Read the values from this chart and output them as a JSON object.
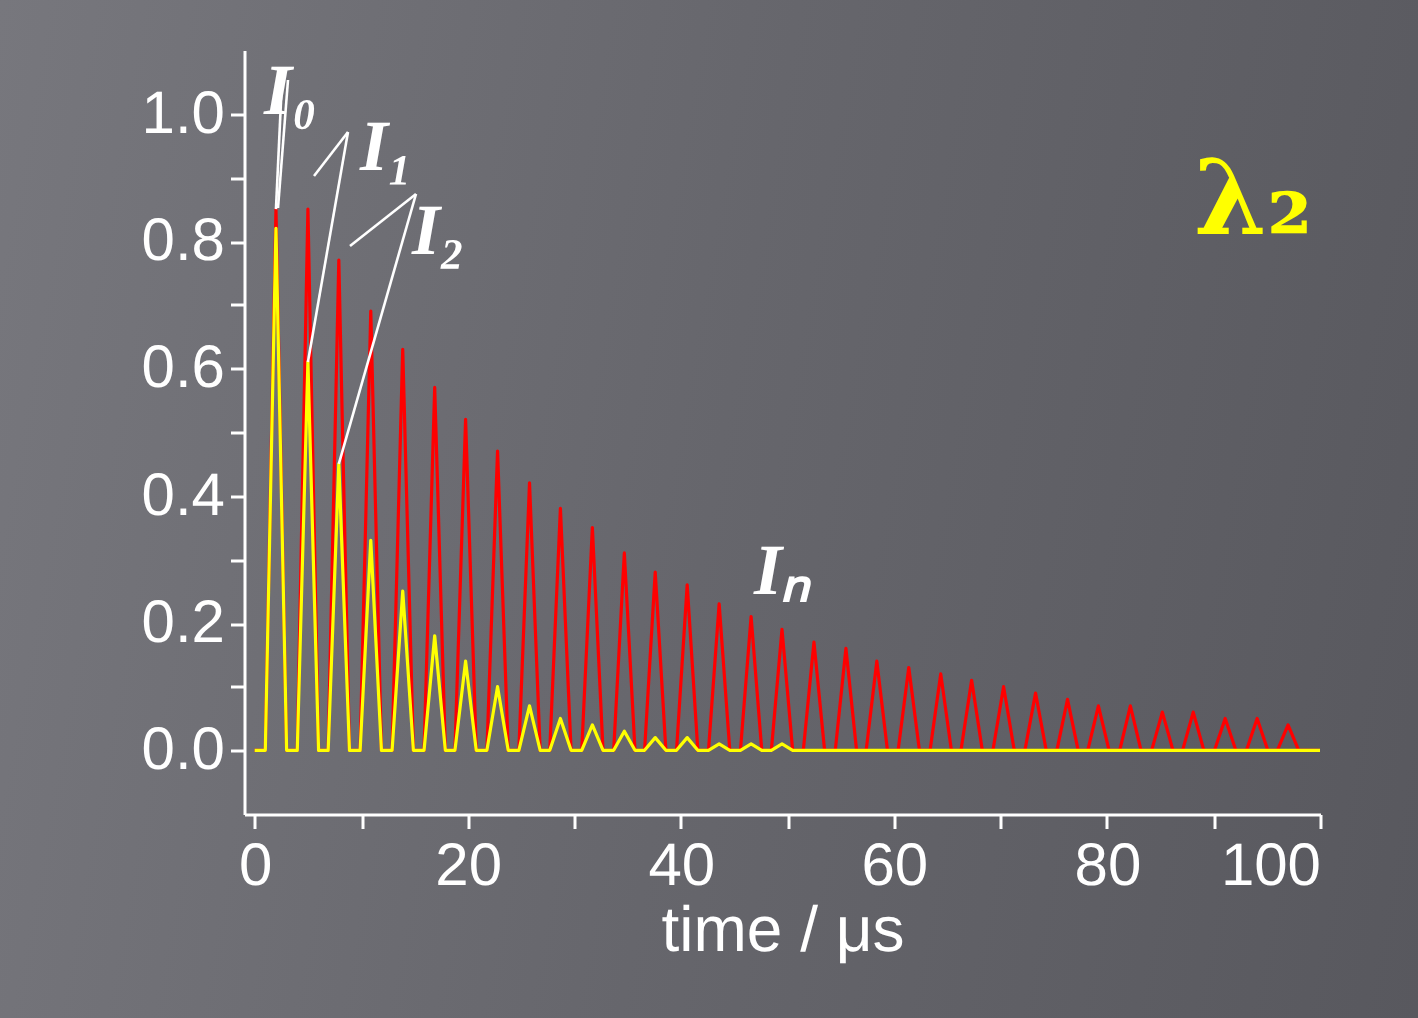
{
  "chart_data": {
    "type": "line",
    "xlabel": "time / μs",
    "x": [
      0,
      1,
      2,
      3,
      4,
      5,
      6,
      6.9,
      7.9,
      8.9,
      9.9,
      10.9,
      11.9,
      12.9,
      13.9,
      14.9,
      15.9,
      16.9,
      17.9,
      18.8,
      19.8,
      20.8,
      21.8,
      22.8,
      23.8,
      24.8,
      25.8,
      26.8,
      27.7,
      28.7,
      29.7,
      30.7,
      31.7,
      32.7,
      33.7,
      34.7,
      35.7,
      36.6,
      37.6,
      38.6,
      39.6,
      40.6,
      41.6,
      42.6,
      43.6,
      44.6,
      45.6,
      46.6,
      47.6,
      48.5,
      49.5,
      50.5,
      51.5,
      52.5,
      53.5,
      54.5,
      55.5,
      56.5,
      57.4,
      58.4,
      59.4,
      60.4,
      61.4,
      62.4,
      63.4,
      64.4,
      65.4,
      66.3,
      67.3,
      68.3,
      69.3,
      70.3,
      71.3,
      72.3,
      73.3,
      74.3,
      75.3,
      76.3,
      77.3,
      78.2,
      79.2,
      80.2,
      81.2,
      82.2,
      83.2,
      84.2,
      85.2,
      86.2,
      87.1,
      88.1,
      89.1,
      90.1,
      91.1,
      92.1,
      93.1,
      94.1,
      95.1,
      96,
      97,
      98,
      100
    ],
    "series": [
      {
        "color": "#ff0000",
        "values": [
          0,
          0,
          0.85,
          0,
          0,
          0.85,
          0,
          0,
          0.77,
          0,
          0,
          0.69,
          0,
          0,
          0.63,
          0,
          0,
          0.57,
          0,
          0,
          0.52,
          0,
          0,
          0.47,
          0,
          0,
          0.42,
          0,
          0,
          0.38,
          0,
          0,
          0.35,
          0,
          0,
          0.31,
          0,
          0,
          0.28,
          0,
          0,
          0.26,
          0,
          0,
          0.23,
          0,
          0,
          0.21,
          0,
          0,
          0.19,
          0,
          0,
          0.17,
          0,
          0,
          0.16,
          0,
          0,
          0.14,
          0,
          0,
          0.13,
          0,
          0,
          0.12,
          0,
          0,
          0.11,
          0,
          0,
          0.1,
          0,
          0,
          0.09,
          0,
          0,
          0.08,
          0,
          0,
          0.07,
          0,
          0,
          0.07,
          0,
          0,
          0.06,
          0,
          0,
          0.06,
          0,
          0,
          0.05,
          0,
          0,
          0.05,
          0,
          0,
          0.04,
          0,
          0
        ]
      },
      {
        "color": "#ffff00",
        "values": [
          0,
          0,
          0.82,
          0,
          0,
          0.61,
          0,
          0,
          0.45,
          0,
          0,
          0.33,
          0,
          0,
          0.25,
          0,
          0,
          0.18,
          0,
          0,
          0.14,
          0,
          0,
          0.1,
          0,
          0,
          0.07,
          0,
          0,
          0.05,
          0,
          0,
          0.04,
          0,
          0,
          0.03,
          0,
          0,
          0.02,
          0,
          0,
          0.02,
          0,
          0,
          0.01,
          0,
          0,
          0.01,
          0,
          0,
          0.01,
          0,
          0,
          0,
          0,
          0,
          0,
          0,
          0,
          0,
          0,
          0,
          0,
          0,
          0,
          0,
          0,
          0,
          0,
          0,
          0,
          0,
          0,
          0,
          0,
          0,
          0,
          0,
          0,
          0,
          0,
          0,
          0,
          0,
          0,
          0,
          0,
          0,
          0,
          0,
          0,
          0,
          0,
          0,
          0,
          0,
          0,
          0,
          0,
          0,
          0
        ]
      }
    ],
    "annotations": [
      {
        "text": "I₀",
        "x": 2,
        "y": 0.85
      },
      {
        "text": "I₁",
        "x": 5,
        "y": 0.61
      },
      {
        "text": "I₂",
        "x": 7.9,
        "y": 0.45
      },
      "Iₙ",
      "λ₂"
    ],
    "xlim": [
      -1,
      100
    ],
    "xticks": [
      0,
      {
        "value": 10,
        "label": null
      },
      20,
      {
        "value": 30,
        "label": null
      },
      40,
      {
        "value": 50,
        "label": null
      },
      60,
      {
        "value": 70,
        "label": null
      },
      80,
      {
        "value": 90,
        "label": null
      },
      100
    ],
    "ylim": [
      -0.1,
      1.1
    ],
    "yticks": [
      {
        "value": 0,
        "label": "0.0"
      },
      {
        "value": 0.1,
        "label": null
      },
      {
        "value": 0.2,
        "label": "0.2"
      },
      {
        "value": 0.3,
        "label": null
      },
      {
        "value": 0.4,
        "label": "0.4"
      },
      {
        "value": 0.5,
        "label": null
      },
      {
        "value": 0.6,
        "label": "0.6"
      },
      {
        "value": 0.7,
        "label": null
      },
      {
        "value": 0.8,
        "label": "0.8"
      },
      {
        "value": 0.9,
        "label": null
      },
      {
        "value": 1,
        "label": "1.0"
      }
    ],
    "grid": false,
    "legend": false
  }
}
